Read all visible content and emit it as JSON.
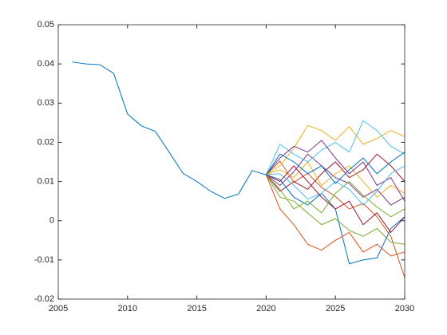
{
  "chart_data": {
    "type": "line",
    "x": [
      2006,
      2007,
      2008,
      2009,
      2010,
      2011,
      2012,
      2013,
      2014,
      2015,
      2016,
      2017,
      2018,
      2019,
      2020,
      2021,
      2022,
      2023,
      2024,
      2025,
      2026,
      2027,
      2028,
      2029,
      2030
    ],
    "xlim": [
      2005,
      2030
    ],
    "xticks": [
      2005,
      2010,
      2015,
      2020,
      2025,
      2030
    ],
    "ylim": [
      -0.02,
      0.05
    ],
    "yticks": [
      -0.02,
      -0.01,
      0,
      0.01,
      0.02,
      0.03,
      0.04,
      0.05
    ],
    "series": [
      {
        "color": "#0072BD",
        "values": [
          0.0405,
          0.04,
          0.0398,
          0.0376,
          0.0272,
          0.0242,
          0.0228,
          0.0175,
          0.0121,
          0.01,
          0.0075,
          0.0057,
          0.0068,
          0.0128,
          0.0117,
          null,
          null,
          null,
          null,
          null,
          null,
          null,
          null,
          null,
          null
        ]
      },
      {
        "color": "#D95319",
        "values": [
          null,
          null,
          null,
          null,
          null,
          null,
          null,
          null,
          null,
          null,
          null,
          null,
          null,
          null,
          0.0117,
          0.0152,
          0.0098,
          0.0121,
          0.0085,
          0.0062,
          0.003,
          0.0044,
          0.001,
          -0.004,
          -0.0145
        ]
      },
      {
        "color": "#EDB120",
        "values": [
          null,
          null,
          null,
          null,
          null,
          null,
          null,
          null,
          null,
          null,
          null,
          null,
          null,
          null,
          0.0117,
          0.014,
          0.0185,
          0.0243,
          0.023,
          0.0205,
          0.024,
          0.0195,
          0.021,
          0.023,
          0.0215
        ]
      },
      {
        "color": "#7E2F8E",
        "values": [
          null,
          null,
          null,
          null,
          null,
          null,
          null,
          null,
          null,
          null,
          null,
          null,
          null,
          null,
          0.0117,
          0.009,
          0.0125,
          0.017,
          0.014,
          0.011,
          0.0095,
          0.006,
          0.008,
          0.004,
          0.006
        ]
      },
      {
        "color": "#77AC30",
        "values": [
          null,
          null,
          null,
          null,
          null,
          null,
          null,
          null,
          null,
          null,
          null,
          null,
          null,
          null,
          0.0117,
          0.006,
          0.005,
          0.002,
          -0.001,
          0.0005,
          -0.0025,
          -0.004,
          -0.002,
          -0.0055,
          -0.006
        ]
      },
      {
        "color": "#4DBEEE",
        "values": [
          null,
          null,
          null,
          null,
          null,
          null,
          null,
          null,
          null,
          null,
          null,
          null,
          null,
          null,
          0.0117,
          0.0195,
          0.017,
          0.015,
          0.018,
          0.02,
          0.0175,
          0.0255,
          0.023,
          0.019,
          0.017
        ]
      },
      {
        "color": "#A2142F",
        "values": [
          null,
          null,
          null,
          null,
          null,
          null,
          null,
          null,
          null,
          null,
          null,
          null,
          null,
          null,
          0.0117,
          0.0075,
          0.01,
          0.008,
          0.012,
          0.015,
          0.011,
          0.013,
          0.017,
          0.014,
          0.01
        ]
      },
      {
        "color": "#0072BD",
        "values": [
          null,
          null,
          null,
          null,
          null,
          null,
          null,
          null,
          null,
          null,
          null,
          null,
          null,
          null,
          0.0117,
          0.0105,
          0.006,
          0.004,
          0.007,
          0.003,
          -0.011,
          -0.01,
          -0.0095,
          -0.002,
          0.001
        ]
      },
      {
        "color": "#D95319",
        "values": [
          null,
          null,
          null,
          null,
          null,
          null,
          null,
          null,
          null,
          null,
          null,
          null,
          null,
          null,
          0.0117,
          0.003,
          -0.001,
          -0.006,
          -0.0075,
          -0.005,
          -0.003,
          -0.008,
          -0.006,
          -0.009,
          -0.008
        ]
      },
      {
        "color": "#EDB120",
        "values": [
          null,
          null,
          null,
          null,
          null,
          null,
          null,
          null,
          null,
          null,
          null,
          null,
          null,
          null,
          0.0117,
          0.013,
          0.011,
          0.015,
          0.009,
          0.012,
          0.014,
          0.01,
          0.006,
          0.009,
          0.007
        ]
      },
      {
        "color": "#7E2F8E",
        "values": [
          null,
          null,
          null,
          null,
          null,
          null,
          null,
          null,
          null,
          null,
          null,
          null,
          null,
          null,
          0.0117,
          0.016,
          0.019,
          0.0175,
          0.0205,
          0.016,
          0.012,
          0.015,
          0.009,
          0.011,
          0.005
        ]
      },
      {
        "color": "#77AC30",
        "values": [
          null,
          null,
          null,
          null,
          null,
          null,
          null,
          null,
          null,
          null,
          null,
          null,
          null,
          null,
          0.0117,
          0.008,
          0.003,
          0.005,
          0.002,
          0.007,
          0.01,
          0.0065,
          0.0035,
          0.001,
          0.003
        ]
      },
      {
        "color": "#4DBEEE",
        "values": [
          null,
          null,
          null,
          null,
          null,
          null,
          null,
          null,
          null,
          null,
          null,
          null,
          null,
          null,
          0.0117,
          0.012,
          0.009,
          0.0055,
          0.007,
          0.01,
          0.008,
          0.004,
          0.0075,
          0.012,
          0.014
        ]
      },
      {
        "color": "#A2142F",
        "values": [
          null,
          null,
          null,
          null,
          null,
          null,
          null,
          null,
          null,
          null,
          null,
          null,
          null,
          null,
          0.0117,
          0.01,
          0.014,
          0.01,
          0.006,
          0.003,
          0.005,
          -0.001,
          0.002,
          -0.003,
          0.001
        ]
      },
      {
        "color": "#0072BD",
        "values": [
          null,
          null,
          null,
          null,
          null,
          null,
          null,
          null,
          null,
          null,
          null,
          null,
          null,
          null,
          0.0117,
          0.017,
          0.015,
          0.012,
          0.014,
          0.0095,
          0.013,
          0.016,
          0.012,
          0.015,
          0.0175
        ]
      }
    ]
  }
}
